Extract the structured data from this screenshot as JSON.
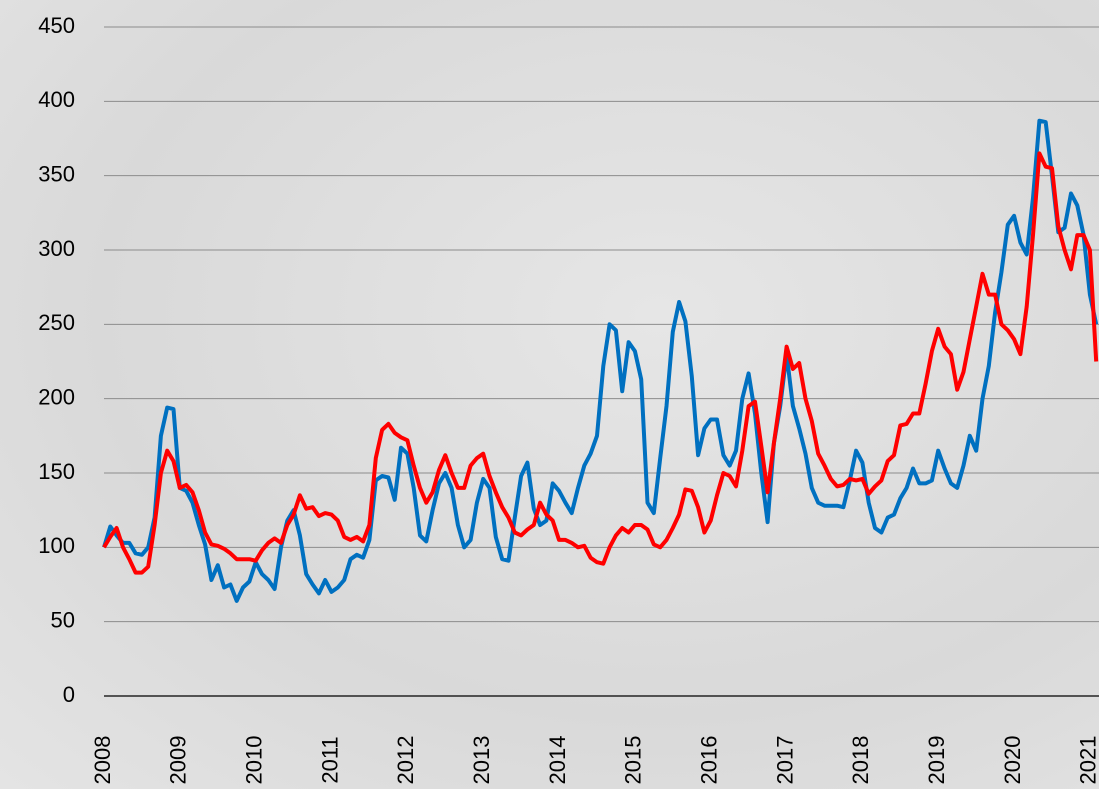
{
  "chart_data": {
    "type": "line",
    "categories": [
      "2008",
      null,
      null,
      null,
      null,
      null,
      null,
      null,
      null,
      null,
      null,
      null,
      "2009",
      null,
      null,
      null,
      null,
      null,
      null,
      null,
      null,
      null,
      null,
      null,
      "2010",
      null,
      null,
      null,
      null,
      null,
      null,
      null,
      null,
      null,
      null,
      null,
      "2011",
      null,
      null,
      null,
      null,
      null,
      null,
      null,
      null,
      null,
      null,
      null,
      "2012",
      null,
      null,
      null,
      null,
      null,
      null,
      null,
      null,
      null,
      null,
      null,
      "2013",
      null,
      null,
      null,
      null,
      null,
      null,
      null,
      null,
      null,
      null,
      null,
      "2014",
      null,
      null,
      null,
      null,
      null,
      null,
      null,
      null,
      null,
      null,
      null,
      "2015",
      null,
      null,
      null,
      null,
      null,
      null,
      null,
      null,
      null,
      null,
      null,
      "2016",
      null,
      null,
      null,
      null,
      null,
      null,
      null,
      null,
      null,
      null,
      null,
      "2017",
      null,
      null,
      null,
      null,
      null,
      null,
      null,
      null,
      null,
      null,
      null,
      "2018",
      null,
      null,
      null,
      null,
      null,
      null,
      null,
      null,
      null,
      null,
      null,
      "2019",
      null,
      null,
      null,
      null,
      null,
      null,
      null,
      null,
      null,
      null,
      null,
      "2020",
      null,
      null,
      null,
      null,
      null,
      null,
      null,
      null,
      null,
      null,
      null,
      "2021",
      null
    ],
    "series": [
      {
        "color": "#0070c0",
        "values": [
          100,
          114,
          108,
          103,
          103,
          96,
          95,
          100,
          120,
          175,
          194,
          193,
          140,
          138,
          130,
          115,
          102,
          78,
          88,
          73,
          75,
          64,
          73,
          77,
          90,
          82,
          78,
          72,
          100,
          118,
          125,
          108,
          82,
          75,
          69,
          78,
          70,
          73,
          78,
          92,
          95,
          93,
          105,
          145,
          148,
          147,
          132,
          167,
          163,
          140,
          108,
          104,
          125,
          143,
          150,
          140,
          115,
          100,
          105,
          130,
          146,
          140,
          107,
          92,
          91,
          120,
          148,
          157,
          126,
          115,
          118,
          143,
          138,
          130,
          123,
          140,
          155,
          163,
          175,
          222,
          250,
          246,
          205,
          238,
          232,
          213,
          130,
          123,
          160,
          195,
          245,
          265,
          252,
          215,
          162,
          180,
          186,
          186,
          162,
          155,
          165,
          200,
          217,
          190,
          150,
          117,
          170,
          195,
          230,
          195,
          180,
          163,
          140,
          130,
          128,
          128,
          128,
          127,
          145,
          165,
          157,
          130,
          113,
          110,
          120,
          122,
          133,
          140,
          153,
          143,
          143,
          145,
          165,
          153,
          143,
          140,
          155,
          175,
          165,
          200,
          222,
          258,
          285,
          317,
          323,
          305,
          297,
          335,
          387,
          386,
          350,
          312,
          315,
          338,
          330,
          310,
          270,
          250
        ]
      },
      {
        "color": "#ff0000",
        "values": [
          100,
          107,
          113,
          100,
          92,
          83,
          83,
          87,
          115,
          150,
          165,
          158,
          140,
          142,
          137,
          125,
          110,
          102,
          101,
          99,
          96,
          92,
          92,
          92,
          91,
          98,
          103,
          106,
          103,
          115,
          122,
          135,
          126,
          127,
          121,
          123,
          122,
          118,
          107,
          105,
          107,
          104,
          115,
          160,
          179,
          183,
          177,
          174,
          172,
          155,
          140,
          130,
          137,
          152,
          162,
          150,
          140,
          140,
          155,
          160,
          163,
          148,
          137,
          127,
          120,
          110,
          108,
          112,
          115,
          130,
          122,
          118,
          105,
          105,
          103,
          100,
          101,
          93,
          90,
          89,
          100,
          108,
          113,
          110,
          115,
          115,
          112,
          102,
          100,
          105,
          113,
          122,
          139,
          138,
          127,
          110,
          118,
          135,
          150,
          148,
          141,
          165,
          195,
          198,
          168,
          137,
          170,
          200,
          235,
          220,
          224,
          200,
          185,
          163,
          155,
          146,
          141,
          142,
          146,
          145,
          146,
          136,
          141,
          145,
          158,
          162,
          182,
          183,
          190,
          190,
          210,
          232,
          247,
          235,
          230,
          206,
          218,
          240,
          262,
          284,
          270,
          270,
          250,
          246,
          240,
          230,
          262,
          310,
          365,
          356,
          355,
          316,
          300,
          287,
          310,
          310,
          300,
          225
        ]
      }
    ],
    "ylim": [
      0,
      450
    ],
    "yticks": [
      0,
      50,
      100,
      150,
      200,
      250,
      300,
      350,
      400,
      450
    ],
    "grid": true
  }
}
